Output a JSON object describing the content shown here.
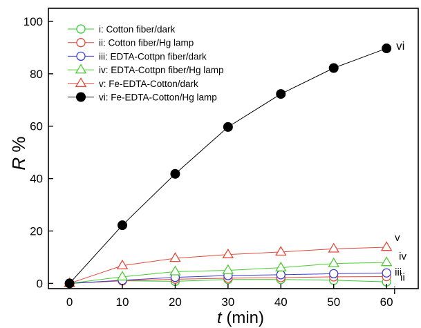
{
  "chart_data": {
    "type": "line",
    "title": "",
    "xlabel_italic": "t",
    "xlabel_unit": "(min)",
    "ylabel_italic": "R",
    "ylabel_unit": "%",
    "xlim": [
      -4,
      66
    ],
    "ylim": [
      -2,
      105
    ],
    "xticks": [
      0,
      10,
      20,
      30,
      40,
      50,
      60
    ],
    "yticks": [
      0,
      20,
      40,
      60,
      80,
      100
    ],
    "x": [
      0,
      10,
      20,
      30,
      40,
      50,
      60
    ],
    "legend_position": "top-left",
    "series": [
      {
        "name": "i: Cotton fiber/dark",
        "end_label": "i",
        "color": "#33cc33",
        "marker": "open-circle",
        "values": [
          0,
          1.0,
          0.8,
          1.5,
          1.5,
          1.2,
          0.6
        ]
      },
      {
        "name": "ii: Cotton fiber/Hg lamp",
        "end_label": "ii",
        "color": "#e8473a",
        "marker": "open-circle",
        "values": [
          0,
          1.0,
          1.6,
          2.0,
          2.2,
          2.5,
          2.6
        ]
      },
      {
        "name": "iii: EDTA-Cottpn fiber/dark",
        "end_label": "iii",
        "color": "#3a3ad6",
        "marker": "open-circle",
        "values": [
          0,
          1.2,
          2.3,
          3.0,
          3.3,
          3.7,
          4.0
        ]
      },
      {
        "name": "iv: EDTA-Cottpn fiber/Hg lamp",
        "end_label": "iv",
        "color": "#4ccc33",
        "marker": "open-triangle",
        "values": [
          0,
          2.5,
          4.5,
          5.0,
          6.0,
          7.6,
          8.0
        ]
      },
      {
        "name": "v: Fe-EDTA-Cotton/dark",
        "end_label": "v",
        "color": "#e34a3c",
        "marker": "open-triangle",
        "values": [
          0,
          6.8,
          9.6,
          11.0,
          12.0,
          13.2,
          13.8
        ]
      },
      {
        "name": "vi: Fe-EDTA-Cotton/Hg lamp",
        "end_label": "vi",
        "color": "#000000",
        "marker": "filled-circle",
        "values": [
          0,
          22.2,
          41.8,
          59.7,
          72.3,
          82.2,
          89.7
        ]
      }
    ]
  }
}
